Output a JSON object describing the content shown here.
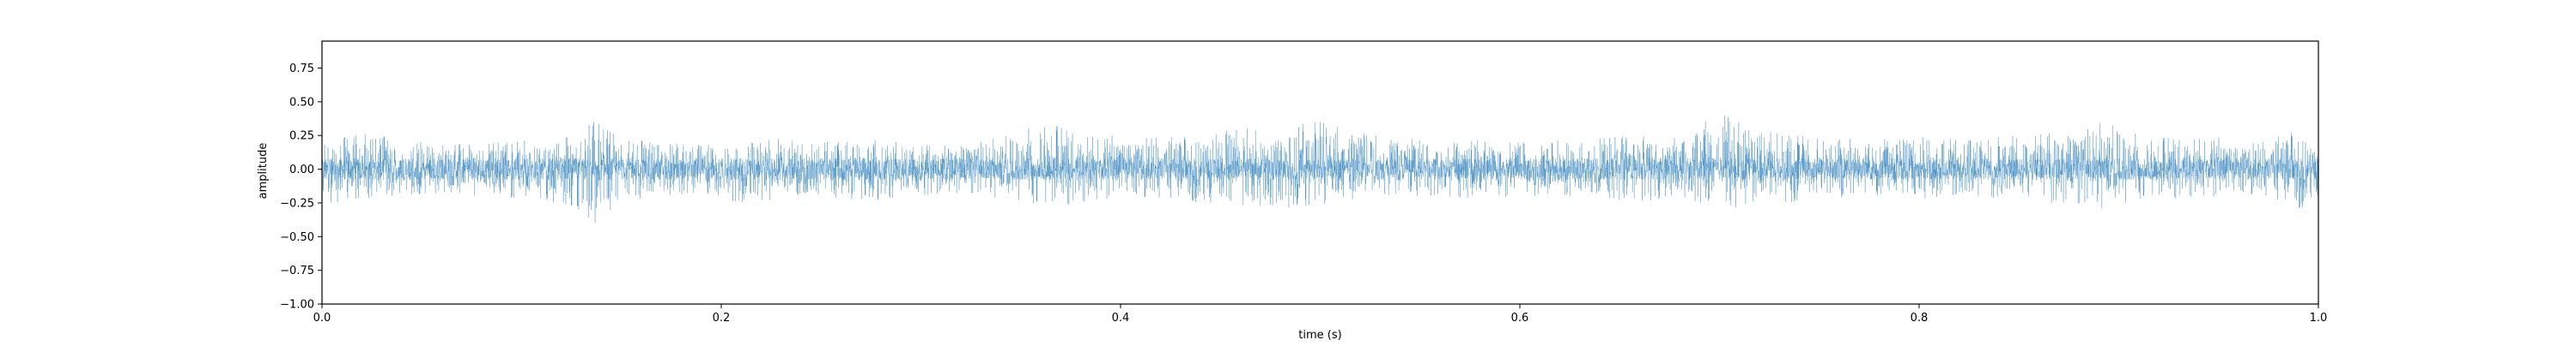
{
  "chart_data": {
    "type": "line",
    "title": "",
    "xlabel": "time (s)",
    "ylabel": "amplitude",
    "xlim": [
      0.0,
      1.0
    ],
    "ylim": [
      -1.0,
      0.95
    ],
    "xticks": [
      0.0,
      0.2,
      0.4,
      0.6,
      0.8,
      1.0
    ],
    "xtick_labels": [
      "0.0",
      "0.2",
      "0.4",
      "0.6",
      "0.8",
      "1.0"
    ],
    "yticks": [
      -1.0,
      -0.75,
      -0.5,
      -0.25,
      0.0,
      0.25,
      0.5,
      0.75
    ],
    "ytick_labels": [
      "−1.00",
      "−0.75",
      "−0.50",
      "−0.25",
      "0.00",
      "0.25",
      "0.50",
      "0.75"
    ],
    "grid": false,
    "series_color": "#1f77b4",
    "envelope": {
      "t": [
        0.0,
        0.02,
        0.04,
        0.06,
        0.08,
        0.1,
        0.12,
        0.135,
        0.15,
        0.17,
        0.19,
        0.21,
        0.23,
        0.25,
        0.27,
        0.29,
        0.31,
        0.33,
        0.35,
        0.36,
        0.38,
        0.4,
        0.42,
        0.44,
        0.46,
        0.48,
        0.5,
        0.52,
        0.54,
        0.56,
        0.58,
        0.6,
        0.62,
        0.64,
        0.66,
        0.68,
        0.7,
        0.72,
        0.74,
        0.76,
        0.78,
        0.8,
        0.82,
        0.84,
        0.86,
        0.88,
        0.89,
        0.91,
        0.93,
        0.95,
        0.97,
        0.99,
        1.0
      ],
      "max": [
        0.18,
        0.28,
        0.22,
        0.18,
        0.2,
        0.22,
        0.24,
        0.38,
        0.24,
        0.2,
        0.18,
        0.22,
        0.24,
        0.2,
        0.24,
        0.2,
        0.18,
        0.22,
        0.26,
        0.38,
        0.24,
        0.26,
        0.24,
        0.26,
        0.3,
        0.32,
        0.36,
        0.28,
        0.24,
        0.2,
        0.22,
        0.2,
        0.22,
        0.24,
        0.26,
        0.24,
        0.42,
        0.28,
        0.26,
        0.24,
        0.22,
        0.24,
        0.22,
        0.24,
        0.26,
        0.3,
        0.36,
        0.26,
        0.22,
        0.24,
        0.2,
        0.3,
        0.18
      ],
      "min": [
        -0.3,
        -0.22,
        -0.2,
        -0.18,
        -0.2,
        -0.22,
        -0.26,
        -0.42,
        -0.24,
        -0.2,
        -0.18,
        -0.26,
        -0.22,
        -0.2,
        -0.24,
        -0.22,
        -0.18,
        -0.2,
        -0.24,
        -0.3,
        -0.26,
        -0.2,
        -0.24,
        -0.26,
        -0.28,
        -0.3,
        -0.3,
        -0.26,
        -0.22,
        -0.2,
        -0.22,
        -0.2,
        -0.2,
        -0.22,
        -0.24,
        -0.22,
        -0.3,
        -0.26,
        -0.24,
        -0.22,
        -0.2,
        -0.22,
        -0.2,
        -0.22,
        -0.24,
        -0.28,
        -0.3,
        -0.24,
        -0.22,
        -0.2,
        -0.2,
        -0.32,
        -0.2
      ]
    }
  }
}
